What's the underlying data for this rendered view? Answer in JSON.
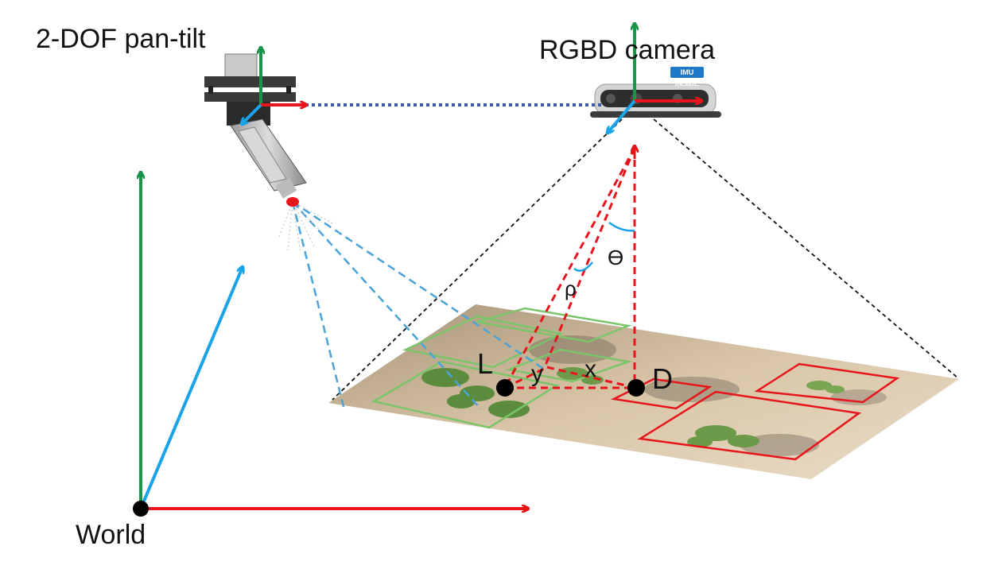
{
  "labels": {
    "pan_tilt": "2-DOF pan-tilt",
    "camera": "RGBD camera",
    "world": "World",
    "point_l": "L",
    "point_d": "D",
    "dist_x": "x",
    "dist_y": "y",
    "angle_theta": "ϴ",
    "angle_rho": "ρ",
    "imu_badge": "IMU INSIDE"
  },
  "colors": {
    "axis_x": "#e8141c",
    "axis_y": "#1a9448",
    "axis_z": "#1aa3e8",
    "geometry": "#e8141c",
    "spray_fov": "#4aa3d8",
    "camera_fov": "#111111",
    "link": "#3d5aa8",
    "detection_box": "#e8141c",
    "target_box": "#7cc46a"
  }
}
